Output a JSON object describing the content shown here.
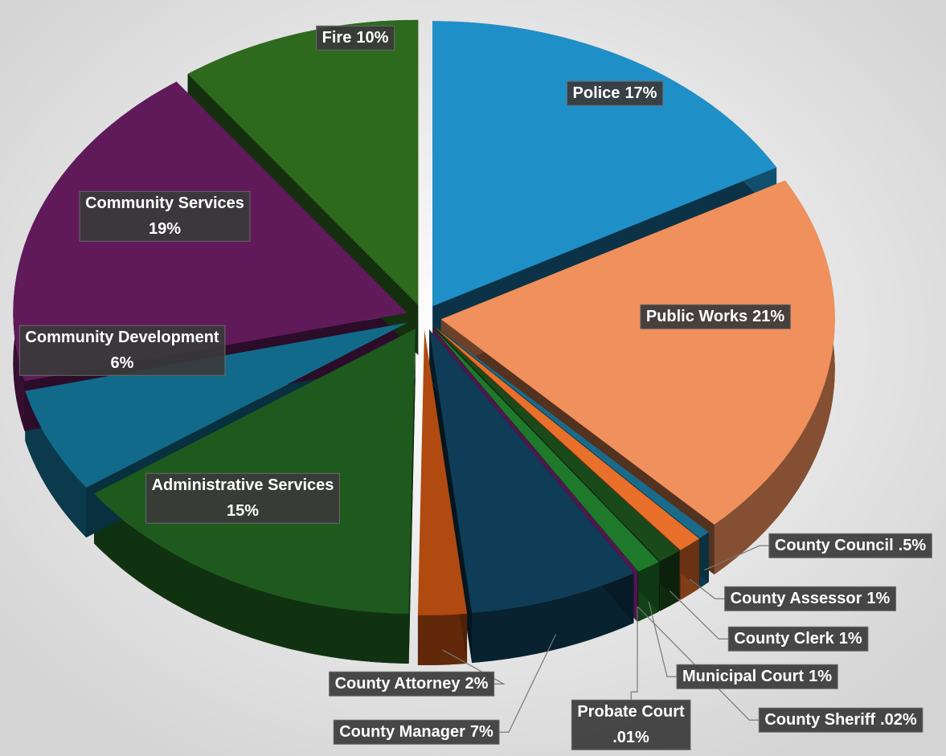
{
  "chart_data": {
    "type": "pie",
    "categories": [
      "Police",
      "Public Works",
      "County Council",
      "County Assessor",
      "County Clerk",
      "Municipal Court",
      "County Sheriff",
      "Probate Court",
      "County Manager",
      "County Attorney",
      "Administrative Services",
      "Community Development",
      "Community Services",
      "Fire"
    ],
    "values": [
      17,
      21,
      0.5,
      1,
      1,
      1,
      0.02,
      0.01,
      7,
      2,
      15,
      6,
      19,
      10
    ],
    "value_labels": [
      "17%",
      "21%",
      ".5%",
      "1%",
      "1%",
      "1%",
      ".02%",
      ".01%",
      "7%",
      "2%",
      "15%",
      "6%",
      "19%",
      "10%"
    ],
    "colors": [
      "#1f8fc7",
      "#f0905c",
      "#1a6a8a",
      "#e8702a",
      "#1a4a1a",
      "#1e7a2a",
      "#3a1040",
      "#b030b0",
      "#0f3d57",
      "#b04a10",
      "#1e5a1e",
      "#126a8a",
      "#601a5a",
      "#2e6a1e"
    ]
  }
}
